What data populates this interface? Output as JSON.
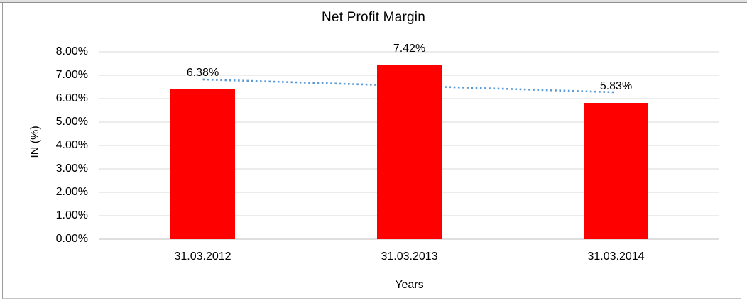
{
  "chart_data": {
    "type": "bar",
    "title": "Net Profit Margin",
    "xlabel": "Years",
    "ylabel": "IN (%)",
    "categories": [
      "31.03.2012",
      "31.03.2013",
      "31.03.2014"
    ],
    "values": [
      6.38,
      7.42,
      5.83
    ],
    "data_labels": [
      "6.38%",
      "7.42%",
      "5.83%"
    ],
    "y_ticks": [
      "8.00%",
      "7.00%",
      "6.00%",
      "5.00%",
      "4.00%",
      "3.00%",
      "2.00%",
      "1.00%",
      "0.00%"
    ],
    "ylim": [
      0,
      8
    ],
    "grid": true,
    "legend": "none",
    "bar_color": "#FF0000",
    "gridline_color": "#D9D9D9",
    "axis_line_color": "#BFBFBF",
    "trendline": {
      "type": "linear",
      "style": "dotted",
      "color": "#5B9BD5",
      "start_value": 6.82,
      "end_value": 6.27
    }
  }
}
